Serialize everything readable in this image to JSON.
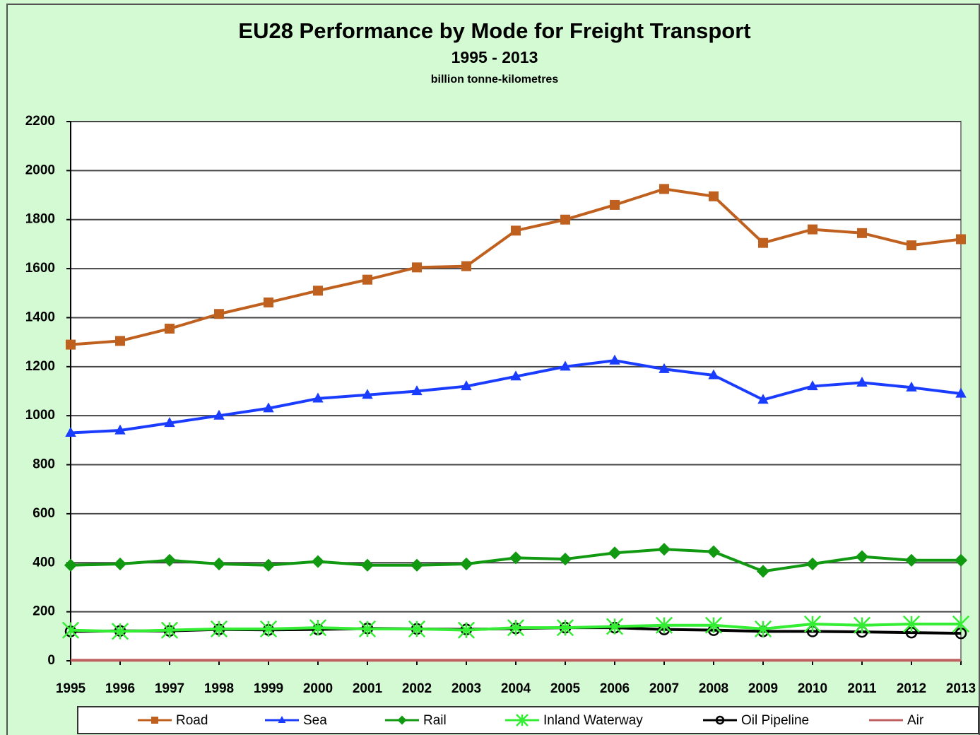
{
  "chart_data": {
    "type": "line",
    "title": "EU28 Performance by Mode for Freight Transport",
    "subtitle": "1995 - 2013",
    "units": "billion tonne-kilometres",
    "categories": [
      "1995",
      "1996",
      "1997",
      "1998",
      "1999",
      "2000",
      "2001",
      "2002",
      "2003",
      "2004",
      "2005",
      "2006",
      "2007",
      "2008",
      "2009",
      "2010",
      "2011",
      "2012",
      "2013"
    ],
    "ylim": [
      0,
      2200
    ],
    "yticks": [
      0,
      200,
      400,
      600,
      800,
      1000,
      1200,
      1400,
      1600,
      1800,
      2000,
      2200
    ],
    "grid": true,
    "legend": "bottom",
    "series": [
      {
        "name": "Road",
        "color": "#c0601f",
        "marker": "square",
        "values": [
          1290,
          1305,
          1355,
          1415,
          1462,
          1510,
          1555,
          1605,
          1610,
          1755,
          1800,
          1860,
          1925,
          1895,
          1705,
          1760,
          1745,
          1695,
          1720
        ]
      },
      {
        "name": "Sea",
        "color": "#1a3cff",
        "marker": "triangle",
        "values": [
          930,
          940,
          970,
          1000,
          1030,
          1070,
          1085,
          1100,
          1120,
          1160,
          1200,
          1225,
          1190,
          1165,
          1065,
          1120,
          1135,
          1115,
          1090
        ]
      },
      {
        "name": "Rail",
        "color": "#119911",
        "marker": "diamond",
        "values": [
          390,
          395,
          410,
          395,
          390,
          405,
          390,
          390,
          395,
          420,
          415,
          440,
          455,
          445,
          365,
          395,
          425,
          410,
          410
        ]
      },
      {
        "name": "Inland Waterway",
        "color": "#33ee33",
        "marker": "star",
        "values": [
          125,
          120,
          125,
          130,
          130,
          135,
          130,
          130,
          125,
          135,
          135,
          140,
          145,
          145,
          130,
          150,
          145,
          150,
          150
        ]
      },
      {
        "name": "Oil Pipeline",
        "color": "#000000",
        "marker": "circle",
        "values": [
          120,
          122,
          122,
          128,
          126,
          128,
          132,
          130,
          128,
          132,
          135,
          135,
          128,
          125,
          120,
          120,
          118,
          115,
          112
        ]
      },
      {
        "name": "Air",
        "color": "#c06060",
        "marker": "none",
        "values": [
          2,
          2,
          2,
          2,
          2,
          2,
          2,
          2,
          2,
          2,
          2,
          2,
          2,
          2,
          2,
          2,
          2,
          2,
          2
        ]
      }
    ]
  }
}
